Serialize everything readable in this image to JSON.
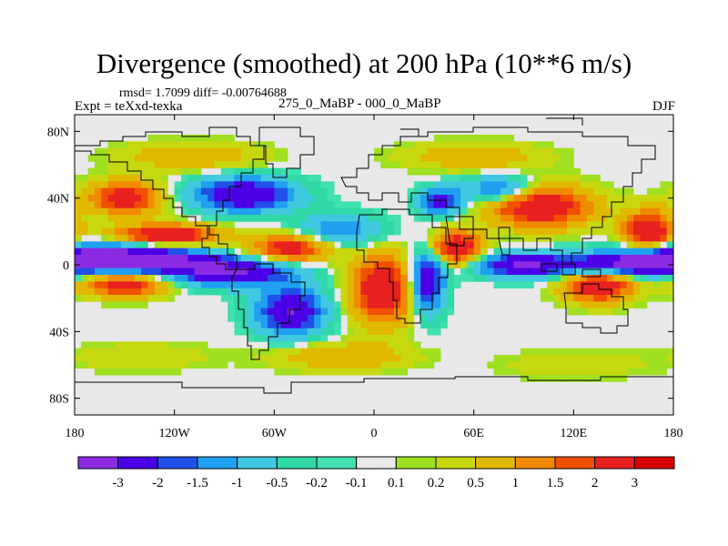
{
  "title": "Divergence (smoothed) at 200 hPa (10**6 m/s)",
  "stats": "rmsd= 1.7099 diff= -0.00764688",
  "experiment": "Expt = teXxd-texka",
  "difference_name": "275_0_MaBP - 000_0_MaBP",
  "season": "DJF",
  "map": {
    "projection": "cylindrical-equidistant",
    "lon_range": [
      -180,
      180
    ],
    "lat_range": [
      -90,
      90
    ],
    "x_ticks": [
      {
        "lon": -180,
        "label": "180"
      },
      {
        "lon": -120,
        "label": "120W"
      },
      {
        "lon": -60,
        "label": "60W"
      },
      {
        "lon": 0,
        "label": "0"
      },
      {
        "lon": 60,
        "label": "60E"
      },
      {
        "lon": 120,
        "label": "120E"
      },
      {
        "lon": 180,
        "label": "180"
      }
    ],
    "y_ticks": [
      {
        "lat": 80,
        "label": "80N"
      },
      {
        "lat": 40,
        "label": "40N"
      },
      {
        "lat": 0,
        "label": "0"
      },
      {
        "lat": -40,
        "label": "40S"
      },
      {
        "lat": -80,
        "label": "80S"
      }
    ]
  },
  "colorbar": {
    "colors": [
      "#8a2be2",
      "#4b00e6",
      "#2050e8",
      "#20a0f0",
      "#40c8e0",
      "#30d8a8",
      "#40e0b0",
      "#e8e8e8",
      "#a0e020",
      "#c8d810",
      "#e0b800",
      "#f08a00",
      "#f05000",
      "#e82020",
      "#d80000"
    ],
    "labels": [
      "-3",
      "-2",
      "-1.5",
      "-1",
      "-0.5",
      "-0.2",
      "-0.1",
      "0.1",
      "0.2",
      "0.5",
      "1",
      "1.5",
      "2",
      "3"
    ]
  },
  "field_features": [
    {
      "lon": -170,
      "lat": 5,
      "value": -3.0,
      "rlon": 40,
      "rlat": 8
    },
    {
      "lon": -130,
      "lat": 2,
      "value": -3.0,
      "rlon": 40,
      "rlat": 7
    },
    {
      "lon": -85,
      "lat": -5,
      "value": -3.0,
      "rlon": 35,
      "rlat": 8
    },
    {
      "lon": -50,
      "lat": -28,
      "value": -3.0,
      "rlon": 20,
      "rlat": 14
    },
    {
      "lon": -78,
      "lat": 42,
      "value": -3.0,
      "rlon": 30,
      "rlat": 10
    },
    {
      "lon": 32,
      "lat": -10,
      "value": -3.0,
      "rlon": 10,
      "rlat": 18
    },
    {
      "lon": 40,
      "lat": 38,
      "value": -2.5,
      "rlon": 12,
      "rlat": 8
    },
    {
      "lon": 90,
      "lat": 0,
      "value": -3.0,
      "rlon": 30,
      "rlat": 7
    },
    {
      "lon": 150,
      "lat": 0,
      "value": -3.0,
      "rlon": 35,
      "rlat": 7
    },
    {
      "lon": 75,
      "lat": 45,
      "value": -2.0,
      "rlon": 20,
      "rlat": 8
    },
    {
      "lon": -20,
      "lat": 20,
      "value": -1.5,
      "rlon": 25,
      "rlat": 10
    },
    {
      "lon": -150,
      "lat": 40,
      "value": 2.5,
      "rlon": 22,
      "rlat": 10
    },
    {
      "lon": -125,
      "lat": 18,
      "value": 3.0,
      "rlon": 30,
      "rlat": 6
    },
    {
      "lon": -50,
      "lat": 10,
      "value": 2.5,
      "rlon": 25,
      "rlat": 8
    },
    {
      "lon": 5,
      "lat": -15,
      "value": 3.0,
      "rlon": 18,
      "rlat": 20
    },
    {
      "lon": 50,
      "lat": 10,
      "value": 3.0,
      "rlon": 15,
      "rlat": 10
    },
    {
      "lon": 100,
      "lat": 35,
      "value": 3.0,
      "rlon": 30,
      "rlat": 12
    },
    {
      "lon": 165,
      "lat": 20,
      "value": 3.0,
      "rlon": 15,
      "rlat": 12
    },
    {
      "lon": 135,
      "lat": -12,
      "value": 3.0,
      "rlon": 20,
      "rlat": 10
    },
    {
      "lon": -150,
      "lat": -12,
      "value": 2.5,
      "rlon": 25,
      "rlat": 7
    },
    {
      "lon": -110,
      "lat": 65,
      "value": 1.0,
      "rlon": 40,
      "rlat": 8
    },
    {
      "lon": 60,
      "lat": 65,
      "value": 1.0,
      "rlon": 40,
      "rlat": 8
    },
    {
      "lon": -20,
      "lat": -55,
      "value": 1.0,
      "rlon": 40,
      "rlat": 8
    },
    {
      "lon": -140,
      "lat": -55,
      "value": 0.5,
      "rlon": 40,
      "rlat": 8
    },
    {
      "lon": 120,
      "lat": -60,
      "value": 0.5,
      "rlon": 40,
      "rlat": 8
    }
  ]
}
